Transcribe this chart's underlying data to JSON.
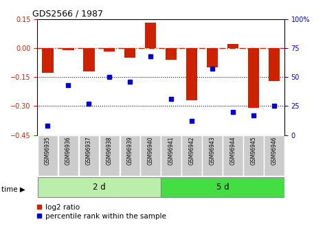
{
  "title": "GDS2566 / 1987",
  "samples": [
    "GSM96935",
    "GSM96936",
    "GSM96937",
    "GSM96938",
    "GSM96939",
    "GSM96940",
    "GSM96941",
    "GSM96942",
    "GSM96943",
    "GSM96944",
    "GSM96945",
    "GSM96946"
  ],
  "log2_ratio": [
    -0.13,
    -0.01,
    -0.12,
    -0.02,
    -0.05,
    0.13,
    -0.06,
    -0.27,
    -0.1,
    0.02,
    -0.31,
    -0.17
  ],
  "percentile_rank": [
    8,
    43,
    27,
    50,
    46,
    68,
    31,
    12,
    57,
    20,
    17,
    25
  ],
  "group1_label": "2 d",
  "group2_label": "5 d",
  "group1_count": 6,
  "group2_count": 6,
  "bar_color": "#cc2200",
  "dot_color": "#0000cc",
  "ylim_left": [
    -0.45,
    0.15
  ],
  "ylim_right": [
    0,
    100
  ],
  "left_yticks": [
    -0.45,
    -0.3,
    -0.15,
    0.0,
    0.15
  ],
  "right_yticks": [
    0,
    25,
    50,
    75,
    100
  ],
  "hline_zero_color": "#cc2200",
  "hline_dotted_color": "#000000",
  "group1_bg": "#bbeeaa",
  "group2_bg": "#44dd44",
  "sample_box_bg": "#cccccc",
  "legend_log2": "log2 ratio",
  "legend_pct": "percentile rank within the sample",
  "fig_width": 4.73,
  "fig_height": 3.45,
  "dpi": 100
}
